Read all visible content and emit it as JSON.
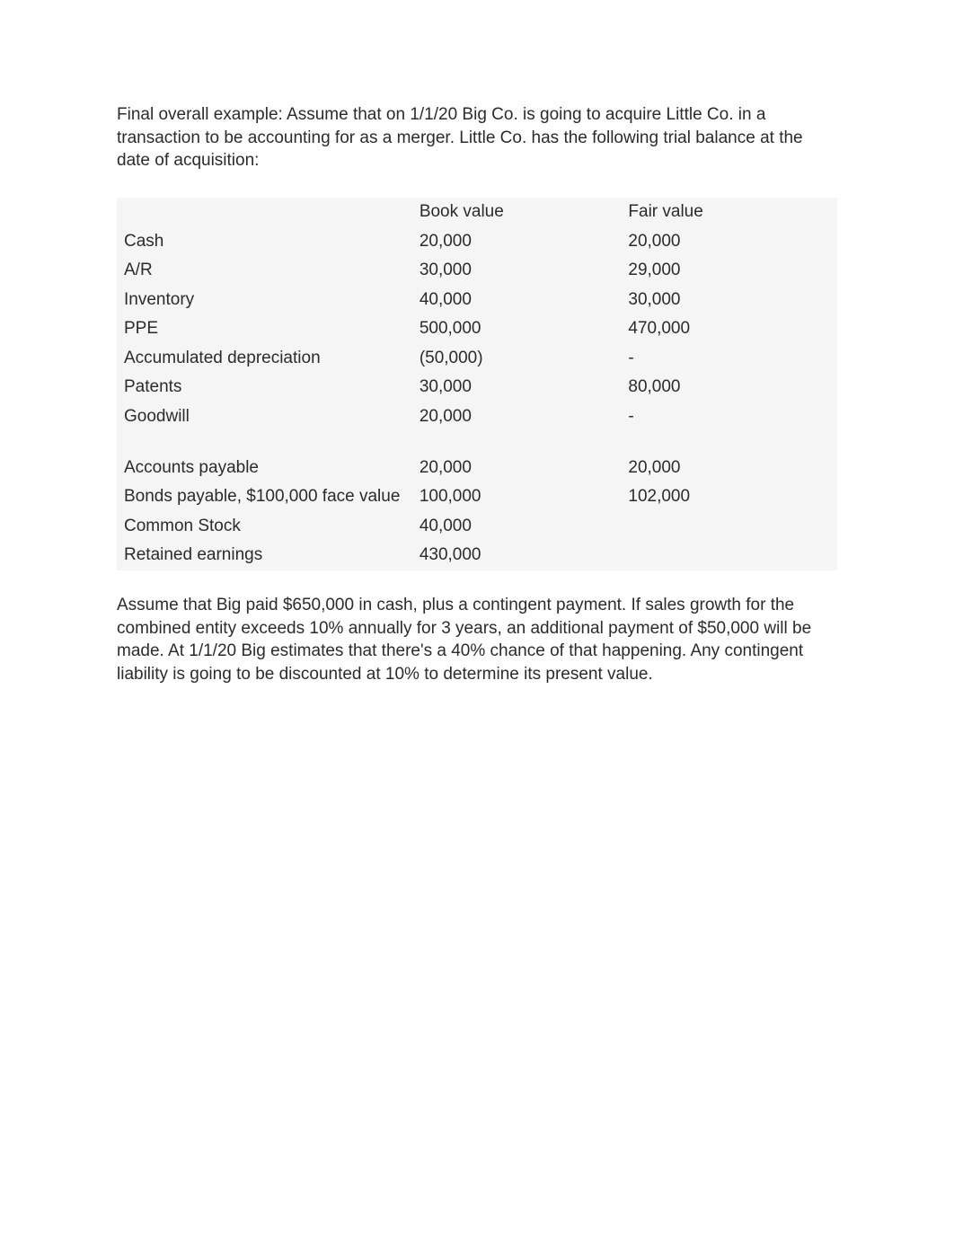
{
  "intro": "Final overall example: Assume that on 1/1/20 Big Co. is going to acquire Little Co. in a transaction to be accounting for as a merger.  Little Co. has the following trial balance at the date of acquisition:",
  "table": {
    "headers": {
      "book": "Book value",
      "fair": "Fair value"
    },
    "rows": [
      {
        "label": "Cash",
        "book": "20,000",
        "fair": "20,000"
      },
      {
        "label": "A/R",
        "book": "30,000",
        "fair": "29,000"
      },
      {
        "label": "Inventory",
        "book": "40,000",
        "fair": "30,000"
      },
      {
        "label": "PPE",
        "book": "500,000",
        "fair": "470,000"
      },
      {
        "label": "Accumulated depreciation",
        "book": "(50,000)",
        "fair": "-"
      },
      {
        "label": "Patents",
        "book": "30,000",
        "fair": "80,000"
      },
      {
        "label": "Goodwill",
        "book": "20,000",
        "fair": "-"
      }
    ],
    "rows2": [
      {
        "label": "Accounts payable",
        "book": "20,000",
        "fair": "20,000"
      },
      {
        "label": "Bonds payable, $100,000 face value",
        "book": "100,000",
        "fair": "102,000"
      },
      {
        "label": "Common Stock",
        "book": "40,000",
        "fair": ""
      },
      {
        "label": "Retained earnings",
        "book": "430,000",
        "fair": ""
      }
    ]
  },
  "footer": "Assume that Big paid $650,000 in cash, plus a contingent payment.  If sales growth for the combined entity exceeds 10% annually for 3 years, an additional payment of $50,000 will be made.  At 1/1/20 Big estimates that there's a 40% chance of that happening. Any contingent liability is going to be discounted at 10% to determine its present value."
}
